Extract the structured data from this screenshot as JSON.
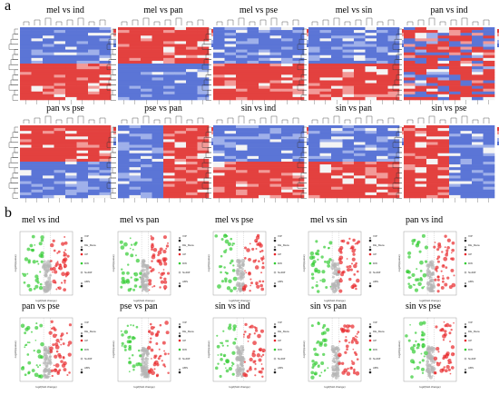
{
  "panel_a_label": "a",
  "panel_b_label": "b",
  "heatmap_titles": [
    "mel vs ind",
    "mel vs pan",
    "mel vs pse",
    "mel vs sin",
    "pan vs ind",
    "pan vs pse",
    "pse vs pan",
    "sin vs ind",
    "sin vs pan",
    "sin vs pse"
  ],
  "volcano_titles": [
    "mel vs ind",
    "mel vs pan",
    "mel vs pse",
    "mel vs sin",
    "pan vs ind",
    "pan vs pse",
    "pse vs pan",
    "sin vs ind",
    "sin vs pan",
    "sin vs pse"
  ],
  "volcano_axis": {
    "x": "log2(fold change)",
    "y": "-log10(qvalue)"
  },
  "legend_labels": {
    "diff": "DE_Meta",
    "up": "UP",
    "down": "DW",
    "nosig": "NoDiff",
    "vip": "VIP",
    "abs": "ABS"
  },
  "colors": {
    "red": "#e8262a",
    "blue": "#3c57c9",
    "white": "#f4f4f4",
    "green": "#33cc33",
    "grey": "#b5b5b5",
    "heat_red": "#e3413f",
    "heat_blue": "#5b75d6"
  },
  "chart_data": {
    "type": "heatmap+scatter",
    "note_heatmap_patterns": [
      [
        0,
        0,
        1,
        1
      ],
      [
        1,
        1,
        0,
        0
      ],
      [
        0,
        0,
        1,
        1
      ],
      [
        0,
        0,
        1,
        1
      ],
      [
        2,
        3,
        2,
        3
      ],
      [
        1,
        1,
        0,
        0
      ],
      [
        0,
        1,
        0,
        1
      ],
      [
        0,
        0,
        1,
        1
      ],
      [
        0,
        0,
        1,
        1
      ],
      [
        1,
        0,
        1,
        0
      ]
    ]
  }
}
